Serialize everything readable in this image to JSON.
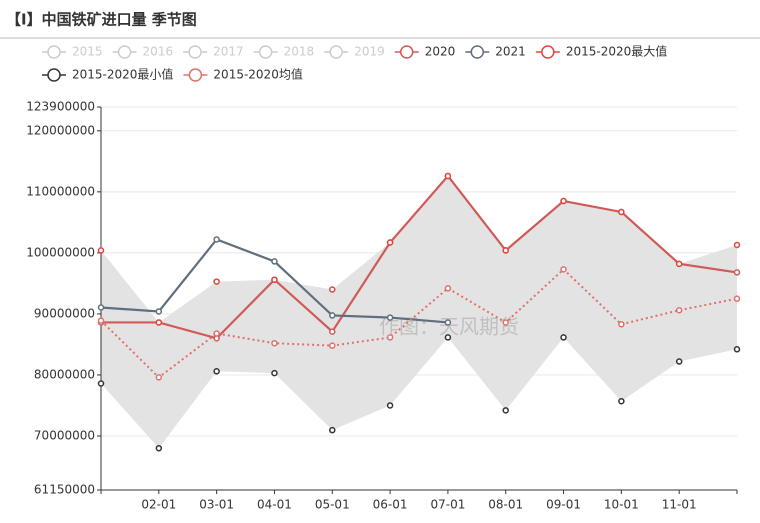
{
  "chart_data": {
    "type": "line",
    "title": "【I】中国铁矿进口量 季节图",
    "watermark": "作图：天风期货",
    "categories": [
      null,
      "02-01",
      "03-01",
      "04-01",
      "05-01",
      "06-01",
      "07-01",
      "08-01",
      "09-01",
      "10-01",
      "11-01",
      null
    ],
    "ylim": [
      61150000,
      123900000
    ],
    "yticks": [
      61150000,
      70000000,
      80000000,
      90000000,
      100000000,
      110000000,
      120000000,
      123900000
    ],
    "grid": true,
    "band_color": "#e3e3e3",
    "series": [
      {
        "name": "2015",
        "color": "#cccccc",
        "visible": false,
        "style": "line",
        "values": [
          null,
          null,
          null,
          null,
          null,
          null,
          null,
          null,
          null,
          null,
          null,
          null
        ]
      },
      {
        "name": "2016",
        "color": "#cccccc",
        "visible": false,
        "style": "line",
        "values": [
          null,
          null,
          null,
          null,
          null,
          null,
          null,
          null,
          null,
          null,
          null,
          null
        ]
      },
      {
        "name": "2017",
        "color": "#cccccc",
        "visible": false,
        "style": "line",
        "values": [
          null,
          null,
          null,
          null,
          null,
          null,
          null,
          null,
          null,
          null,
          null,
          null
        ]
      },
      {
        "name": "2018",
        "color": "#cccccc",
        "visible": false,
        "style": "line",
        "values": [
          null,
          null,
          null,
          null,
          null,
          null,
          null,
          null,
          null,
          null,
          null,
          null
        ]
      },
      {
        "name": "2019",
        "color": "#cccccc",
        "visible": false,
        "style": "line",
        "values": [
          null,
          null,
          null,
          null,
          null,
          null,
          null,
          null,
          null,
          null,
          null,
          null
        ]
      },
      {
        "name": "2020",
        "color": "#d05a57",
        "visible": true,
        "style": "line",
        "values": [
          88600000,
          88600000,
          86000000,
          95600000,
          87100000,
          101700000,
          112600000,
          100400000,
          108500000,
          106700000,
          98200000,
          96800000
        ]
      },
      {
        "name": "2021",
        "color": "#5f6f7e",
        "visible": true,
        "style": "line",
        "values": [
          91050000,
          90400000,
          102200000,
          98600000,
          89750000,
          89400000,
          88600000,
          null,
          null,
          null,
          null,
          null
        ]
      },
      {
        "name": "2015-2020最大值",
        "color": "#e0453b",
        "visible": true,
        "style": "points",
        "role": "upper",
        "values": [
          100400000,
          88600000,
          95300000,
          95600000,
          94000000,
          101700000,
          112600000,
          100400000,
          108500000,
          106700000,
          98200000,
          101300000
        ]
      },
      {
        "name": "2015-2020最小值",
        "color": "#333333",
        "visible": true,
        "style": "points",
        "role": "lower",
        "values": [
          78600000,
          68000000,
          80600000,
          80300000,
          70950000,
          75000000,
          86150000,
          74200000,
          86150000,
          75700000,
          82200000,
          84200000
        ]
      },
      {
        "name": "2015-2020均值",
        "color": "#e0706c",
        "visible": true,
        "style": "dotted",
        "values": [
          88900000,
          79600000,
          86800000,
          85200000,
          84800000,
          86150000,
          94200000,
          88600000,
          97300000,
          88300000,
          90600000,
          92500000
        ]
      }
    ]
  }
}
